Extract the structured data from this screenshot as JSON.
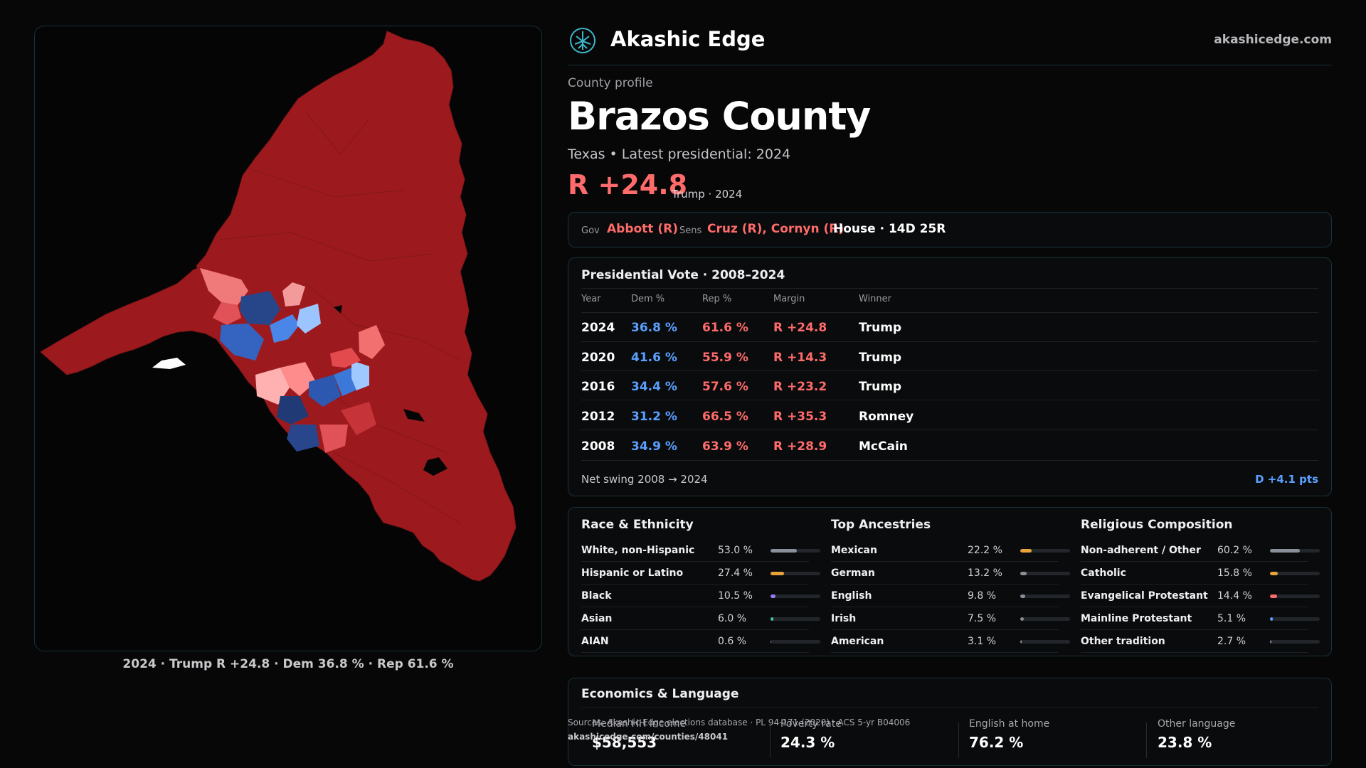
{
  "brand": {
    "name": "Akashic Edge",
    "url": "akashicedge.com",
    "logo_icon": "tree-of-life-icon"
  },
  "colors": {
    "rep": "#ff6b6b",
    "dem": "#5aa0ff",
    "accent": "#3fb6c9"
  },
  "profile": {
    "eyebrow": "County profile",
    "county": "Brazos County",
    "subline": "Texas • Latest presidential: 2024",
    "margin": "R +24.8",
    "margin_note": "Trump · 2024"
  },
  "officials": {
    "gov_label": "Gov",
    "gov": "Abbott (R)",
    "sens_label": "Sens",
    "sens": "Cruz (R), Cornyn (R)",
    "house": "House · 14D 25R"
  },
  "presidential": {
    "title": "Presidential Vote · 2008–2024",
    "headers": [
      "Year",
      "Dem %",
      "Rep %",
      "Margin",
      "Winner"
    ],
    "rows": [
      {
        "year": "2024",
        "dem": "36.8 %",
        "rep": "61.6 %",
        "margin": "R +24.8",
        "winner": "Trump"
      },
      {
        "year": "2020",
        "dem": "41.6 %",
        "rep": "55.9 %",
        "margin": "R +14.3",
        "winner": "Trump"
      },
      {
        "year": "2016",
        "dem": "34.4 %",
        "rep": "57.6 %",
        "margin": "R +23.2",
        "winner": "Trump"
      },
      {
        "year": "2012",
        "dem": "31.2 %",
        "rep": "66.5 %",
        "margin": "R +35.3",
        "winner": "Romney"
      },
      {
        "year": "2008",
        "dem": "34.9 %",
        "rep": "63.9 %",
        "margin": "R +28.9",
        "winner": "McCain"
      }
    ],
    "swing_label": "Net swing 2008 → 2024",
    "swing_value": "D +4.1 pts"
  },
  "race": {
    "title": "Race & Ethnicity",
    "items": [
      {
        "name": "White, non-Hispanic",
        "pct": "53.0 %",
        "value": 53.0,
        "color": "#8a909a"
      },
      {
        "name": "Hispanic or Latino",
        "pct": "27.4 %",
        "value": 27.4,
        "color": "#e8a33a"
      },
      {
        "name": "Black",
        "pct": "10.5 %",
        "value": 10.5,
        "color": "#9b7bff"
      },
      {
        "name": "Asian",
        "pct": "6.0 %",
        "value": 6.0,
        "color": "#3fc9a0"
      },
      {
        "name": "AIAN",
        "pct": "0.6 %",
        "value": 0.6,
        "color": "#8a909a"
      }
    ]
  },
  "ancestries": {
    "title": "Top Ancestries",
    "items": [
      {
        "name": "Mexican",
        "pct": "22.2 %",
        "value": 22.2,
        "color": "#e8a33a"
      },
      {
        "name": "German",
        "pct": "13.2 %",
        "value": 13.2,
        "color": "#8a909a"
      },
      {
        "name": "English",
        "pct": "9.8 %",
        "value": 9.8,
        "color": "#8a909a"
      },
      {
        "name": "Irish",
        "pct": "7.5 %",
        "value": 7.5,
        "color": "#8a909a"
      },
      {
        "name": "American",
        "pct": "3.1 %",
        "value": 3.1,
        "color": "#8a909a"
      }
    ]
  },
  "religion": {
    "title": "Religious Composition",
    "items": [
      {
        "name": "Non-adherent / Other",
        "pct": "60.2 %",
        "value": 60.2,
        "color": "#8a909a"
      },
      {
        "name": "Catholic",
        "pct": "15.8 %",
        "value": 15.8,
        "color": "#e8a33a"
      },
      {
        "name": "Evangelical Protestant",
        "pct": "14.4 %",
        "value": 14.4,
        "color": "#ff6b6b"
      },
      {
        "name": "Mainline Protestant",
        "pct": "5.1 %",
        "value": 5.1,
        "color": "#5aa0ff"
      },
      {
        "name": "Other tradition",
        "pct": "2.7 %",
        "value": 2.7,
        "color": "#8a909a"
      }
    ]
  },
  "economics": {
    "title": "Economics & Language",
    "stats": [
      {
        "label": "Median HH income",
        "value": "$58,553"
      },
      {
        "label": "Poverty rate",
        "value": "24.3 %"
      },
      {
        "label": "English at home",
        "value": "76.2 %"
      },
      {
        "label": "Other language",
        "value": "23.8 %"
      }
    ]
  },
  "sources": {
    "text": "Sources: Akashic Edge elections database · PL 94-171 (2020) · ACS 5-yr B04006",
    "link": "akashicedge.com/counties/48041"
  },
  "map": {
    "caption": "2024 · Trump R +24.8 · Dem 36.8 % · Rep 61.6 %"
  }
}
